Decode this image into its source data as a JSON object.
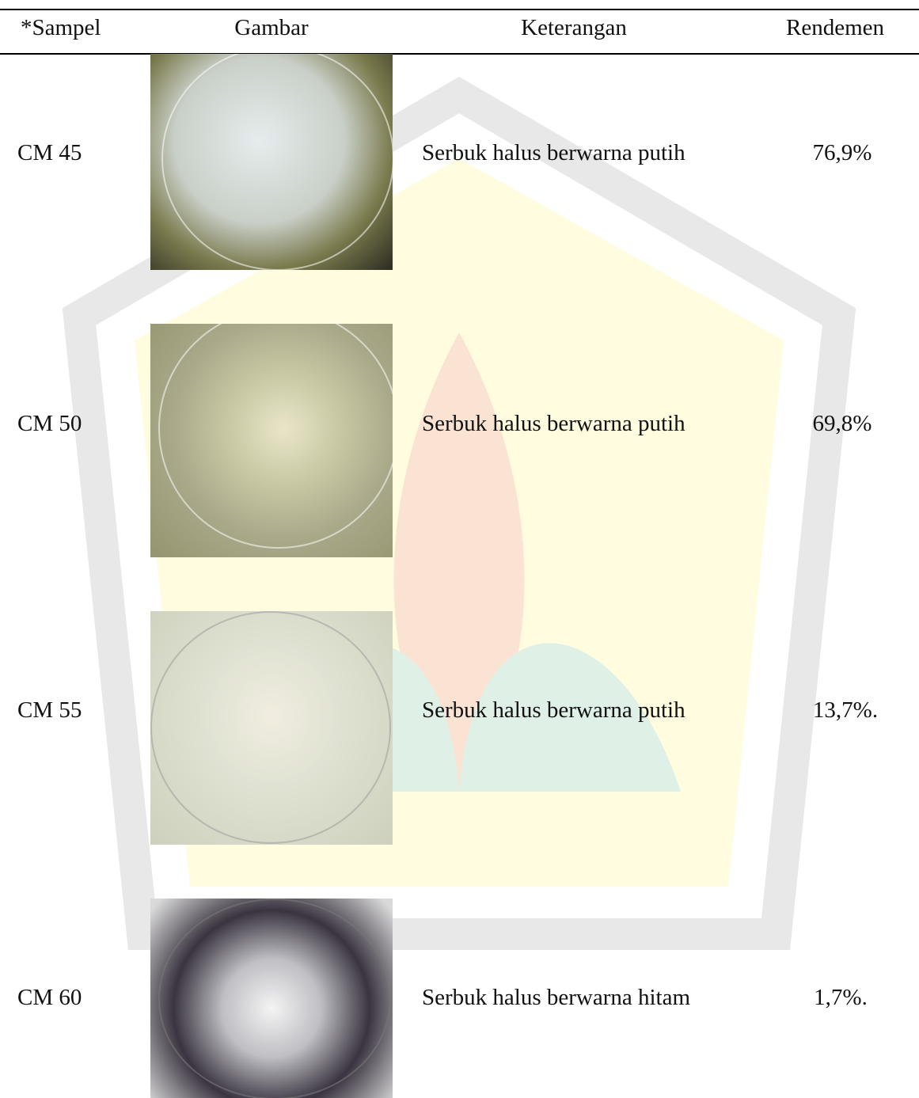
{
  "table": {
    "header": [
      "*Sampel",
      "Gambar",
      "Keterangan",
      "Rendemen"
    ],
    "rows": [
      [
        "CM 45",
        "Serbuk halus berwarna putih",
        "76,9%"
      ],
      [
        "CM 50",
        "Serbuk halus berwarna putih",
        "69,8%"
      ],
      [
        "CM 55",
        "Serbuk halus berwarna putih",
        "13,7%."
      ],
      [
        "CM 60",
        "Serbuk halus berwarna hitam",
        "1,7%."
      ]
    ]
  }
}
